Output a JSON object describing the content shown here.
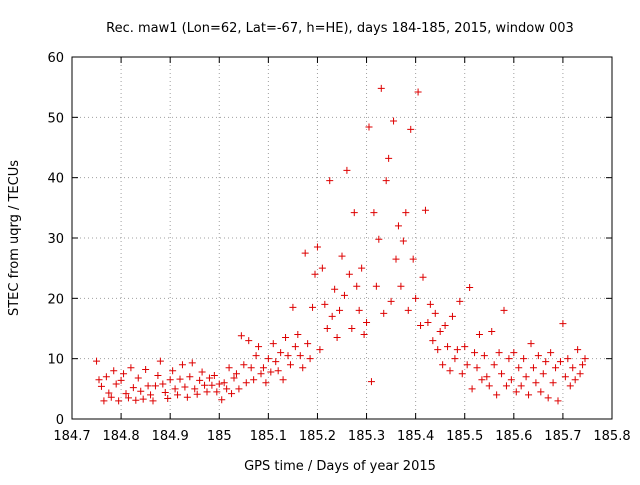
{
  "chart_data": {
    "type": "scatter",
    "title": "Rec. maw1 (Lon=62, Lat=-67, h=HE), days 184-185, 2015, window 003",
    "xlabel": "GPS time / Days of year 2015",
    "ylabel": "STEC from uqrg / TECUs",
    "xlim": [
      184.7,
      185.8
    ],
    "ylim": [
      0,
      60
    ],
    "x_ticks": [
      "184.7",
      "184.8",
      "184.9",
      "185",
      "185.1",
      "185.2",
      "185.3",
      "185.4",
      "185.5",
      "185.6",
      "185.7",
      "185.8"
    ],
    "y_ticks": [
      "0",
      "10",
      "20",
      "30",
      "40",
      "50",
      "60"
    ],
    "grid": true,
    "marker": "plus",
    "series": [
      {
        "color": "#dd0000",
        "points": [
          [
            184.75,
            9.6
          ],
          [
            184.755,
            6.5
          ],
          [
            184.76,
            5.4
          ],
          [
            184.765,
            3.0
          ],
          [
            184.77,
            7.0
          ],
          [
            184.775,
            4.3
          ],
          [
            184.78,
            3.6
          ],
          [
            184.785,
            8.0
          ],
          [
            184.79,
            5.8
          ],
          [
            184.795,
            3.0
          ],
          [
            184.8,
            6.4
          ],
          [
            184.805,
            7.5
          ],
          [
            184.81,
            4.2
          ],
          [
            184.815,
            3.5
          ],
          [
            184.82,
            8.5
          ],
          [
            184.825,
            5.2
          ],
          [
            184.83,
            3.1
          ],
          [
            184.835,
            6.8
          ],
          [
            184.84,
            4.6
          ],
          [
            184.845,
            3.3
          ],
          [
            184.85,
            8.2
          ],
          [
            184.855,
            5.5
          ],
          [
            184.86,
            4.0
          ],
          [
            184.865,
            3.0
          ],
          [
            184.87,
            5.5
          ],
          [
            184.875,
            7.2
          ],
          [
            184.88,
            9.6
          ],
          [
            184.885,
            5.8
          ],
          [
            184.89,
            4.4
          ],
          [
            184.895,
            3.4
          ],
          [
            184.9,
            6.5
          ],
          [
            184.905,
            8.0
          ],
          [
            184.91,
            5.0
          ],
          [
            184.915,
            4.0
          ],
          [
            184.92,
            6.6
          ],
          [
            184.925,
            9.0
          ],
          [
            184.93,
            5.3
          ],
          [
            184.935,
            3.6
          ],
          [
            184.94,
            7.0
          ],
          [
            184.945,
            9.3
          ],
          [
            184.95,
            5.0
          ],
          [
            184.955,
            4.1
          ],
          [
            184.96,
            6.4
          ],
          [
            184.965,
            7.8
          ],
          [
            184.97,
            5.6
          ],
          [
            184.975,
            4.5
          ],
          [
            184.98,
            6.8
          ],
          [
            184.985,
            5.6
          ],
          [
            184.99,
            7.2
          ],
          [
            184.995,
            4.5
          ],
          [
            185.0,
            5.8
          ],
          [
            185.005,
            3.2
          ],
          [
            185.01,
            6.0
          ],
          [
            185.015,
            5.0
          ],
          [
            185.02,
            8.5
          ],
          [
            185.025,
            4.2
          ],
          [
            185.03,
            6.8
          ],
          [
            185.035,
            7.5
          ],
          [
            185.04,
            5.0
          ],
          [
            185.045,
            13.8
          ],
          [
            185.05,
            9.0
          ],
          [
            185.055,
            6.0
          ],
          [
            185.06,
            13.0
          ],
          [
            185.065,
            8.5
          ],
          [
            185.07,
            6.5
          ],
          [
            185.075,
            10.5
          ],
          [
            185.08,
            12.0
          ],
          [
            185.085,
            7.5
          ],
          [
            185.09,
            8.5
          ],
          [
            185.095,
            6.0
          ],
          [
            185.1,
            10.0
          ],
          [
            185.105,
            7.8
          ],
          [
            185.11,
            12.5
          ],
          [
            185.115,
            9.5
          ],
          [
            185.12,
            8.0
          ],
          [
            185.125,
            11.0
          ],
          [
            185.13,
            6.5
          ],
          [
            185.135,
            13.5
          ],
          [
            185.14,
            10.5
          ],
          [
            185.145,
            9.0
          ],
          [
            185.15,
            18.5
          ],
          [
            185.155,
            12.0
          ],
          [
            185.16,
            14.0
          ],
          [
            185.165,
            10.5
          ],
          [
            185.17,
            8.5
          ],
          [
            185.175,
            27.5
          ],
          [
            185.18,
            12.5
          ],
          [
            185.185,
            10.0
          ],
          [
            185.19,
            18.5
          ],
          [
            185.195,
            24.0
          ],
          [
            185.2,
            28.5
          ],
          [
            185.205,
            11.5
          ],
          [
            185.21,
            25.0
          ],
          [
            185.215,
            19.0
          ],
          [
            185.22,
            15.0
          ],
          [
            185.225,
            39.5
          ],
          [
            185.23,
            17.0
          ],
          [
            185.235,
            21.5
          ],
          [
            185.24,
            13.5
          ],
          [
            185.245,
            18.0
          ],
          [
            185.25,
            27.0
          ],
          [
            185.255,
            20.5
          ],
          [
            185.26,
            41.2
          ],
          [
            185.265,
            24.0
          ],
          [
            185.27,
            15.0
          ],
          [
            185.275,
            34.2
          ],
          [
            185.28,
            22.0
          ],
          [
            185.285,
            18.0
          ],
          [
            185.29,
            25.0
          ],
          [
            185.295,
            14.0
          ],
          [
            185.3,
            16.0
          ],
          [
            185.305,
            48.4
          ],
          [
            185.31,
            6.2
          ],
          [
            185.315,
            34.2
          ],
          [
            185.32,
            22.0
          ],
          [
            185.325,
            29.8
          ],
          [
            185.33,
            54.8
          ],
          [
            185.335,
            17.5
          ],
          [
            185.34,
            39.5
          ],
          [
            185.345,
            43.2
          ],
          [
            185.35,
            19.5
          ],
          [
            185.355,
            49.4
          ],
          [
            185.36,
            26.5
          ],
          [
            185.365,
            32.0
          ],
          [
            185.37,
            22.0
          ],
          [
            185.375,
            29.5
          ],
          [
            185.38,
            34.2
          ],
          [
            185.385,
            18.0
          ],
          [
            185.39,
            48.0
          ],
          [
            185.395,
            26.5
          ],
          [
            185.4,
            20.0
          ],
          [
            185.405,
            54.2
          ],
          [
            185.41,
            15.5
          ],
          [
            185.415,
            23.5
          ],
          [
            185.42,
            34.6
          ],
          [
            185.425,
            16.0
          ],
          [
            185.43,
            19.0
          ],
          [
            185.435,
            13.0
          ],
          [
            185.44,
            17.5
          ],
          [
            185.445,
            11.5
          ],
          [
            185.45,
            14.5
          ],
          [
            185.455,
            9.0
          ],
          [
            185.46,
            15.5
          ],
          [
            185.465,
            12.0
          ],
          [
            185.47,
            8.0
          ],
          [
            185.475,
            17.0
          ],
          [
            185.48,
            10.0
          ],
          [
            185.485,
            11.5
          ],
          [
            185.49,
            19.5
          ],
          [
            185.495,
            7.5
          ],
          [
            185.5,
            12.0
          ],
          [
            185.505,
            9.0
          ],
          [
            185.51,
            21.8
          ],
          [
            185.515,
            5.0
          ],
          [
            185.52,
            11.0
          ],
          [
            185.525,
            8.5
          ],
          [
            185.53,
            14.0
          ],
          [
            185.535,
            6.5
          ],
          [
            185.54,
            10.5
          ],
          [
            185.545,
            7.0
          ],
          [
            185.55,
            5.5
          ],
          [
            185.555,
            14.5
          ],
          [
            185.56,
            9.0
          ],
          [
            185.565,
            4.0
          ],
          [
            185.57,
            11.0
          ],
          [
            185.575,
            7.5
          ],
          [
            185.58,
            18.0
          ],
          [
            185.585,
            5.5
          ],
          [
            185.59,
            10.0
          ],
          [
            185.595,
            6.5
          ],
          [
            185.6,
            11.0
          ],
          [
            185.605,
            4.5
          ],
          [
            185.61,
            8.5
          ],
          [
            185.615,
            5.5
          ],
          [
            185.62,
            10.0
          ],
          [
            185.625,
            7.0
          ],
          [
            185.63,
            4.0
          ],
          [
            185.635,
            12.5
          ],
          [
            185.64,
            8.5
          ],
          [
            185.645,
            6.0
          ],
          [
            185.65,
            10.5
          ],
          [
            185.655,
            4.5
          ],
          [
            185.66,
            7.5
          ],
          [
            185.665,
            9.5
          ],
          [
            185.67,
            3.5
          ],
          [
            185.675,
            11.0
          ],
          [
            185.68,
            6.0
          ],
          [
            185.685,
            8.5
          ],
          [
            185.69,
            3.0
          ],
          [
            185.695,
            9.5
          ],
          [
            185.7,
            15.8
          ],
          [
            185.705,
            7.0
          ],
          [
            185.71,
            10.0
          ],
          [
            185.715,
            5.5
          ],
          [
            185.72,
            8.5
          ],
          [
            185.725,
            6.5
          ],
          [
            185.73,
            11.5
          ],
          [
            185.735,
            7.5
          ],
          [
            185.74,
            9.0
          ],
          [
            185.745,
            10.0
          ]
        ]
      }
    ]
  }
}
